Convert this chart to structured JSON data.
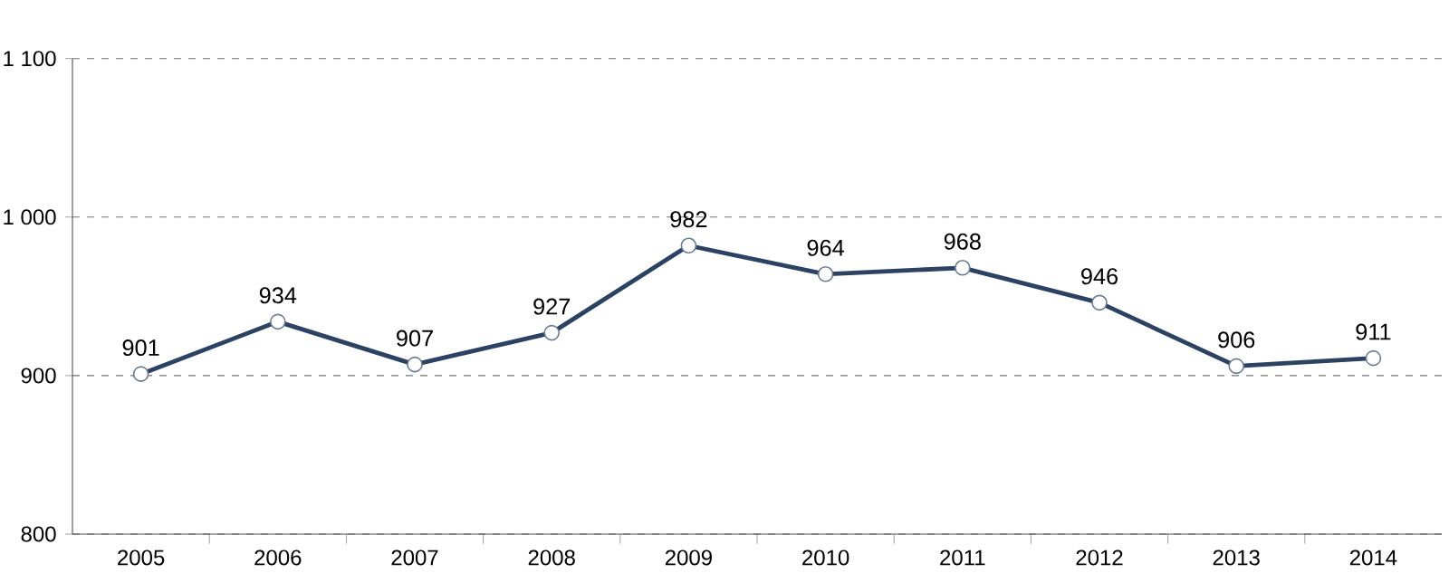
{
  "chart_data": {
    "type": "line",
    "categories": [
      "2005",
      "2006",
      "2007",
      "2008",
      "2009",
      "2010",
      "2011",
      "2012",
      "2013",
      "2014"
    ],
    "values": [
      901,
      934,
      907,
      927,
      982,
      964,
      968,
      946,
      906,
      911
    ],
    "color": "#2b4263",
    "marker": "circle",
    "line_style": "solid",
    "data_labels": true,
    "grid": "y",
    "ylim": [
      800,
      1100
    ],
    "yticks": [
      800,
      900,
      {
        "value": 1000,
        "label": "1 000"
      },
      {
        "value": 1100,
        "label": "1 100"
      }
    ]
  }
}
